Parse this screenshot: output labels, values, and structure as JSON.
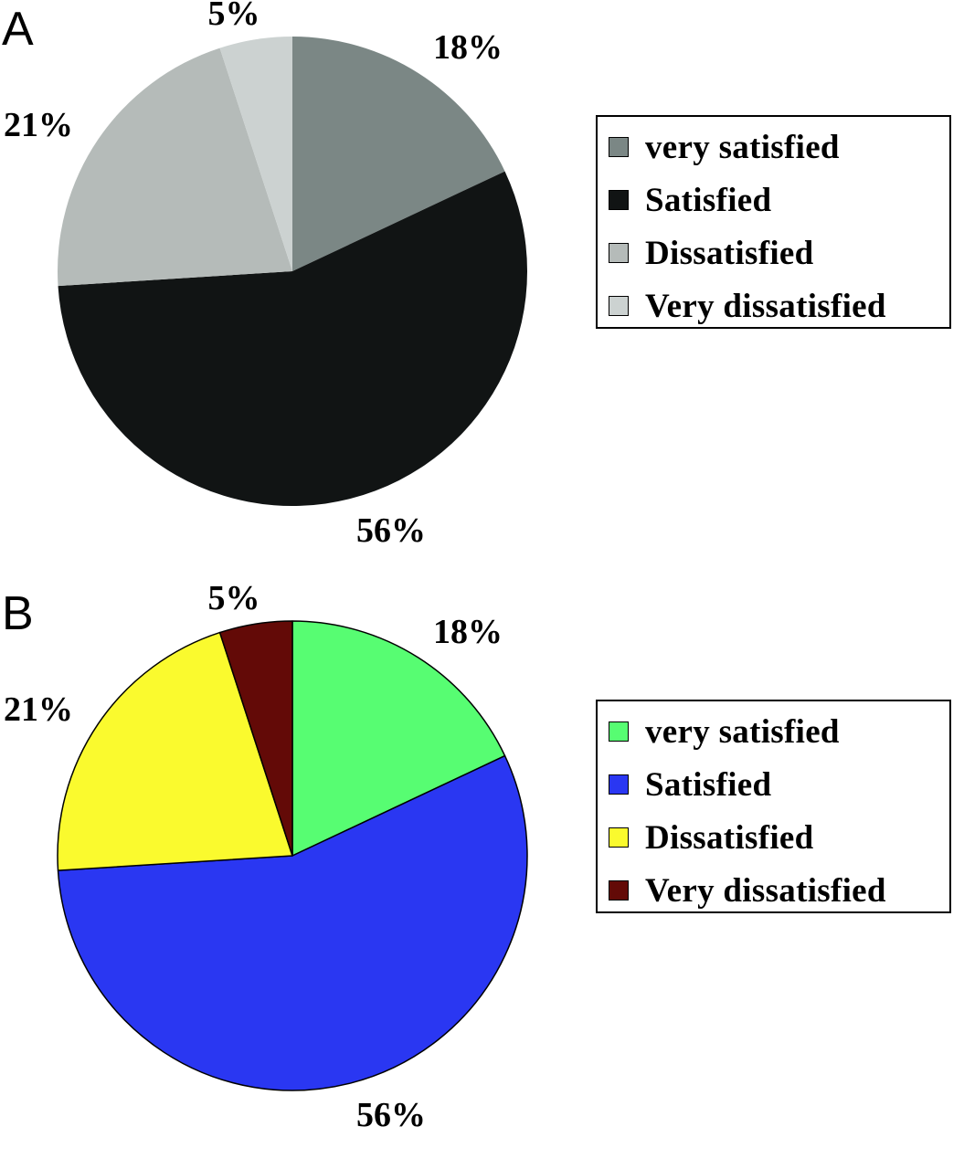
{
  "chart_data": [
    {
      "panel_label": "A",
      "type": "pie",
      "title": "",
      "categories": [
        "very satisfied",
        "Satisfied",
        "Dissatisfied",
        "Very dissatisfied"
      ],
      "values": [
        18,
        56,
        21,
        5
      ],
      "data_labels": [
        "18%",
        "56%",
        "21%",
        "5%"
      ],
      "colors": [
        "#7b8785",
        "#111414",
        "#b5bbb9",
        "#ccd2d1"
      ],
      "stroke": "none",
      "legend_position": "right"
    },
    {
      "panel_label": "B",
      "type": "pie",
      "title": "",
      "categories": [
        "very satisfied",
        "Satisfied",
        "Dissatisfied",
        "Very dissatisfied"
      ],
      "values": [
        18,
        56,
        21,
        5
      ],
      "data_labels": [
        "18%",
        "56%",
        "21%",
        "5%"
      ],
      "colors": [
        "#57fd72",
        "#2a37f2",
        "#fafa2e",
        "#630a07"
      ],
      "stroke": "#000000",
      "legend_position": "right"
    }
  ]
}
